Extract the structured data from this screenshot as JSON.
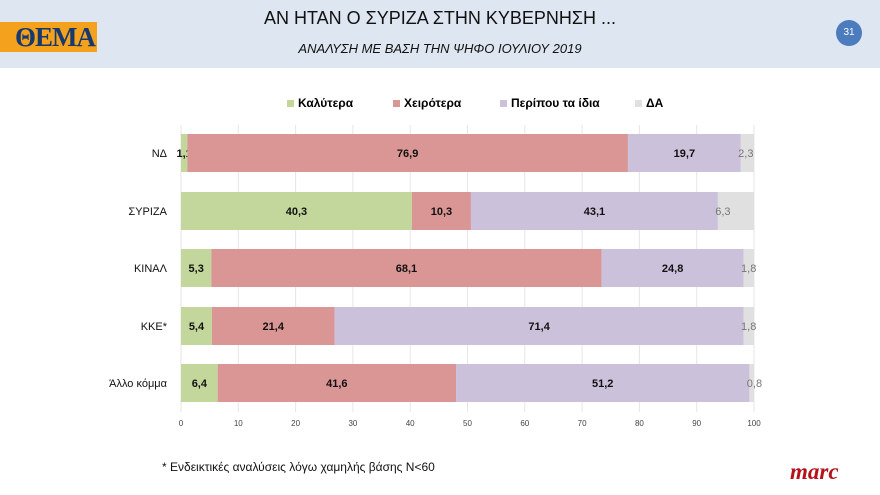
{
  "header": {
    "logo": "ΘΕΜΑ",
    "title": "ΑΝ ΗΤΑΝ Ο ΣΥΡΙΖΑ ΣΤΗΝ ΚΥΒΕΡΝΗΣΗ ...",
    "subtitle": "ΑΝΑΛΥΣΗ ΜΕ ΒΑΣΗ ΤΗΝ ΨΗΦΟ ΙΟΥΛΙΟΥ 2019",
    "page": "31"
  },
  "footnote": "* Ενδεικτικές αναλύσεις λόγω χαμηλής βάσης Ν<60",
  "brand": "marc",
  "chart_data": {
    "type": "bar",
    "orientation": "horizontal",
    "stacked": true,
    "categories": [
      "ΝΔ",
      "ΣΥΡΙΖΑ",
      "ΚΙΝΑΛ",
      "ΚΚΕ*",
      "Άλλο κόμμα"
    ],
    "series": [
      {
        "name": "Καλύτερα",
        "color": "#c3d69b",
        "values": [
          1.1,
          40.3,
          5.3,
          5.4,
          6.4
        ]
      },
      {
        "name": "Χειρότερα",
        "color": "#d99694",
        "values": [
          76.9,
          10.3,
          68.1,
          21.4,
          41.6
        ]
      },
      {
        "name": "Περίπου τα ίδια",
        "color": "#ccc1da",
        "values": [
          19.7,
          43.1,
          24.8,
          71.4,
          51.2
        ]
      },
      {
        "name": "ΔΑ",
        "color": "#e0e0e0",
        "values": [
          2.3,
          6.3,
          1.8,
          1.8,
          0.8
        ]
      }
    ],
    "xlim": [
      0,
      100
    ],
    "xticks": [
      0,
      10,
      20,
      30,
      40,
      50,
      60,
      70,
      80,
      90,
      100
    ],
    "grid": true,
    "legend": "top"
  }
}
